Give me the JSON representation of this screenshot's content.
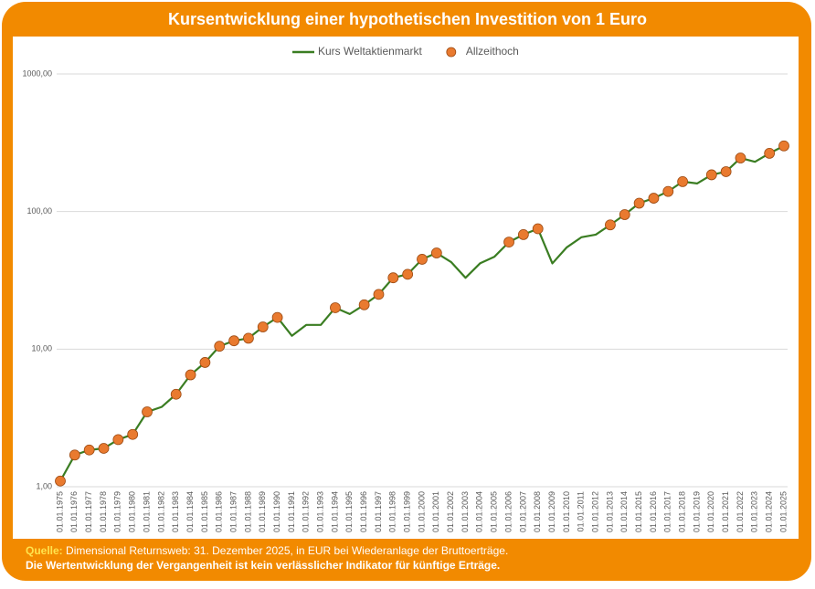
{
  "chart_data": {
    "type": "line",
    "title": "Kursentwicklung einer hypothetischen Investition von 1 Euro",
    "categories": [
      "01.01.1975",
      "01.01.1976",
      "01.01.1977",
      "01.01.1978",
      "01.01.1979",
      "01.01.1980",
      "01.01.1981",
      "01.01.1982",
      "01.01.1983",
      "01.01.1984",
      "01.01.1985",
      "01.01.1986",
      "01.01.1987",
      "01.01.1988",
      "01.01.1989",
      "01.01.1990",
      "01.01.1991",
      "01.01.1992",
      "01.01.1993",
      "01.01.1994",
      "01.01.1995",
      "01.01.1996",
      "01.01.1997",
      "01.01.1998",
      "01.01.1999",
      "01.01.2000",
      "01.01.2001",
      "01.01.2002",
      "01.01.2003",
      "01.01.2004",
      "01.01.2005",
      "01.01.2006",
      "01.01.2007",
      "01.01.2008",
      "01.01.2009",
      "01.01.2010",
      "01.01.2011",
      "01.01.2012",
      "01.01.2013",
      "01.01.2014",
      "01.01.2015",
      "01.01.2016",
      "01.01.2017",
      "01.01.2018",
      "01.01.2019",
      "01.01.2020",
      "01.01.2021",
      "01.01.2022",
      "01.01.2023",
      "01.01.2024",
      "01.01.2025"
    ],
    "series": [
      {
        "name": "Kurs Weltaktienmarkt",
        "color": "#3a7d22",
        "style": "line",
        "values": [
          1.1,
          1.7,
          1.85,
          1.9,
          2.2,
          2.4,
          3.5,
          3.8,
          4.7,
          6.5,
          8.0,
          10.5,
          11.5,
          12,
          14.5,
          17,
          12.5,
          15,
          15,
          20,
          18,
          21,
          25,
          33,
          35,
          45,
          50,
          43,
          33,
          42,
          47,
          60,
          68,
          75,
          42,
          55,
          65,
          68,
          80,
          95,
          115,
          125,
          140,
          165,
          160,
          185,
          195,
          245,
          230,
          265,
          300
        ]
      },
      {
        "name": "Allzeithoch",
        "color": "#e97a2f",
        "style": "marker",
        "values": [
          1.1,
          1.7,
          1.85,
          1.9,
          2.2,
          2.4,
          3.5,
          null,
          4.7,
          6.5,
          8.0,
          10.5,
          11.5,
          12,
          14.5,
          17,
          null,
          null,
          null,
          20,
          null,
          21,
          25,
          33,
          35,
          45,
          50,
          null,
          null,
          null,
          null,
          60,
          68,
          75,
          null,
          null,
          null,
          null,
          80,
          95,
          115,
          125,
          140,
          165,
          null,
          185,
          195,
          245,
          null,
          265,
          300
        ]
      }
    ],
    "yscale": "log",
    "ylim": [
      1,
      1000
    ],
    "yticks": [
      {
        "value": 1,
        "label": "1,00"
      },
      {
        "value": 10,
        "label": "10,00"
      },
      {
        "value": 100,
        "label": "100,00"
      },
      {
        "value": 1000,
        "label": "1000,00"
      }
    ],
    "grid": true,
    "legend": "top"
  },
  "footer": {
    "source_label": "Quelle:",
    "source_text": "Dimensional Returnsweb: 31. Dezember 2025, in EUR bei Wiederanlage der Bruttoerträge.",
    "disclaimer": "Die Wertentwicklung der Vergangenheit ist kein verlässlicher Indikator für künftige Erträge."
  }
}
